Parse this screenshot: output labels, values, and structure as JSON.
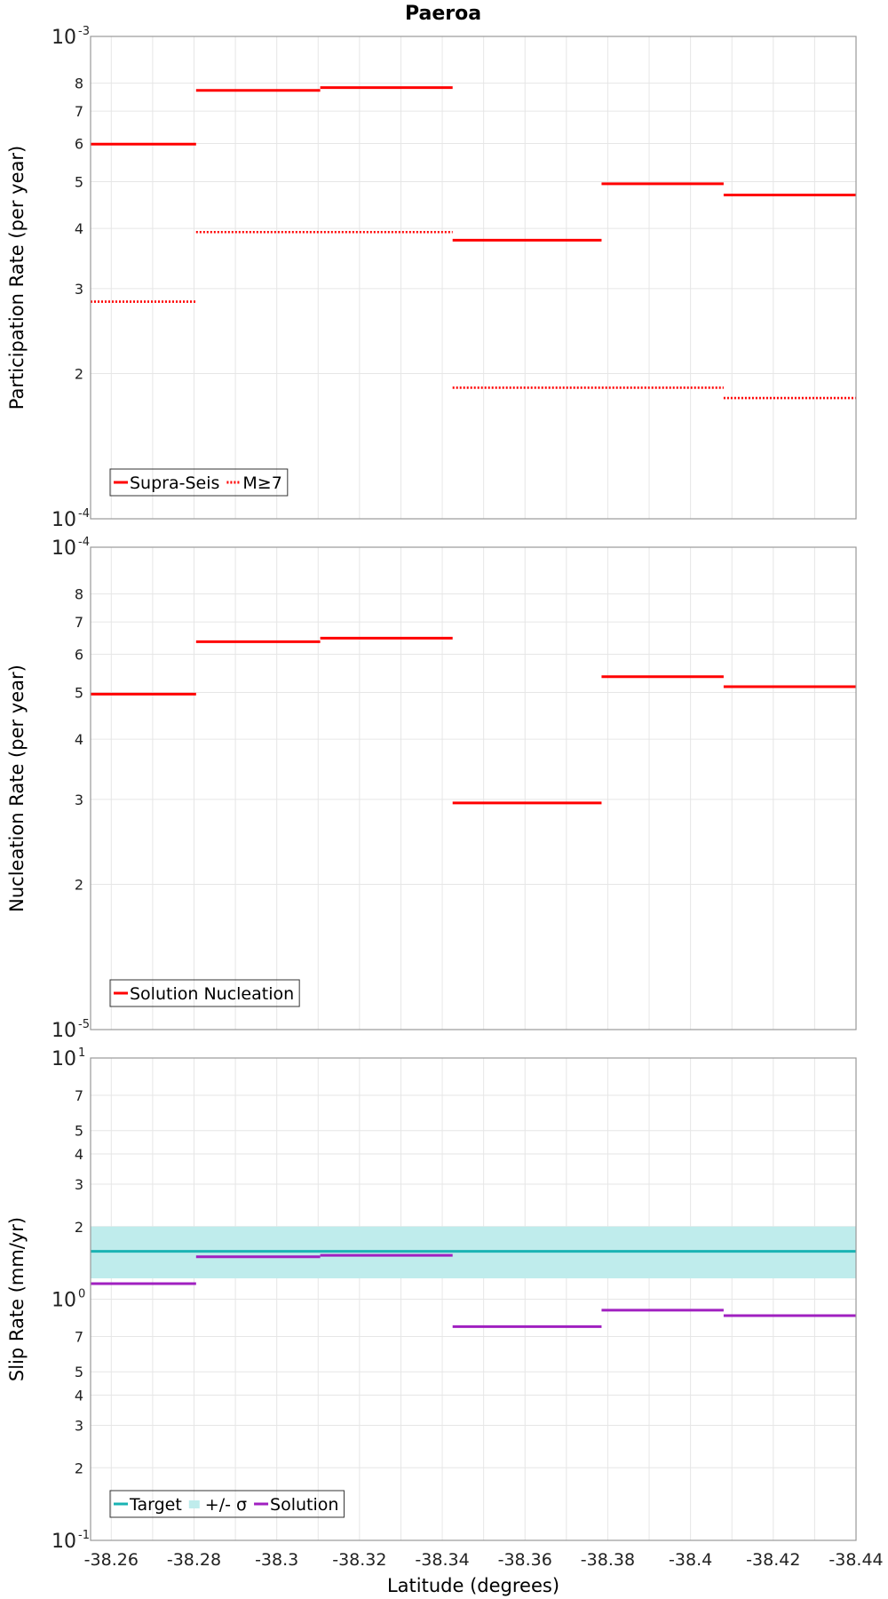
{
  "chart_data": {
    "figure_title": "Paeroa",
    "xlabel": "Latitude (degrees)",
    "xlim": [
      -38.255,
      -38.44
    ],
    "x_ticks": [
      "-38.26",
      "-38.28",
      "-38.3",
      "-38.32",
      "-38.34",
      "-38.36",
      "-38.38",
      "-38.4",
      "-38.42",
      "-38.44"
    ],
    "panels": [
      {
        "type": "line",
        "scale": "log",
        "ylabel": "Participation Rate (per year)",
        "ylim": [
          0.0001,
          0.001
        ],
        "y_ticks": [
          {
            "v": 0.0001,
            "base": "10",
            "exp": "-4",
            "major": true
          },
          {
            "v": 0.0002,
            "label": "2"
          },
          {
            "v": 0.0003,
            "label": "3"
          },
          {
            "v": 0.0004,
            "label": "4"
          },
          {
            "v": 0.0005,
            "label": "5"
          },
          {
            "v": 0.0006,
            "label": "6"
          },
          {
            "v": 0.0007,
            "label": "7"
          },
          {
            "v": 0.0008,
            "label": "8"
          },
          {
            "v": 0.001,
            "base": "10",
            "exp": "-3",
            "major": true
          }
        ],
        "grid": true,
        "legend_position": "bottom-left",
        "legend": [
          {
            "label": "Supra-Seis",
            "style": "solid",
            "color": "#ff0000"
          },
          {
            "label": "M≥7",
            "style": "dotted",
            "color": "#ff0000"
          }
        ],
        "series": [
          {
            "name": "Supra-Seis",
            "color": "#ff0000",
            "style": "solid",
            "segments": [
              {
                "x0": -38.255,
                "x1": -38.2805,
                "y": 0.000598
              },
              {
                "x0": -38.2805,
                "x1": -38.3105,
                "y": 0.000773
              },
              {
                "x0": -38.3105,
                "x1": -38.3425,
                "y": 0.000783
              },
              {
                "x0": -38.3425,
                "x1": -38.3785,
                "y": 0.000378
              },
              {
                "x0": -38.3785,
                "x1": -38.408,
                "y": 0.000495
              },
              {
                "x0": -38.408,
                "x1": -38.44,
                "y": 0.000469
              }
            ]
          },
          {
            "name": "M≥7",
            "color": "#ff0000",
            "style": "dotted",
            "segments": [
              {
                "x0": -38.255,
                "x1": -38.2805,
                "y": 0.000282
              },
              {
                "x0": -38.2805,
                "x1": -38.3425,
                "y": 0.000393
              },
              {
                "x0": -38.3425,
                "x1": -38.408,
                "y": 0.000187
              },
              {
                "x0": -38.408,
                "x1": -38.44,
                "y": 0.000178
              }
            ]
          }
        ]
      },
      {
        "type": "line",
        "scale": "log",
        "ylabel": "Nucleation Rate (per year)",
        "ylim": [
          1e-05,
          0.0001
        ],
        "y_ticks": [
          {
            "v": 1e-05,
            "base": "10",
            "exp": "-5",
            "major": true
          },
          {
            "v": 2e-05,
            "label": "2"
          },
          {
            "v": 3e-05,
            "label": "3"
          },
          {
            "v": 4e-05,
            "label": "4"
          },
          {
            "v": 5e-05,
            "label": "5"
          },
          {
            "v": 6e-05,
            "label": "6"
          },
          {
            "v": 7e-05,
            "label": "7"
          },
          {
            "v": 8e-05,
            "label": "8"
          },
          {
            "v": 0.0001,
            "base": "10",
            "exp": "-4",
            "major": true
          }
        ],
        "grid": true,
        "legend_position": "bottom-left",
        "legend": [
          {
            "label": "Solution Nucleation",
            "style": "solid",
            "color": "#ff0000"
          }
        ],
        "series": [
          {
            "name": "Solution Nucleation",
            "color": "#ff0000",
            "style": "solid",
            "segments": [
              {
                "x0": -38.255,
                "x1": -38.2805,
                "y": 4.96e-05
              },
              {
                "x0": -38.2805,
                "x1": -38.3105,
                "y": 6.37e-05
              },
              {
                "x0": -38.3105,
                "x1": -38.3425,
                "y": 6.48e-05
              },
              {
                "x0": -38.3425,
                "x1": -38.3785,
                "y": 2.95e-05
              },
              {
                "x0": -38.3785,
                "x1": -38.408,
                "y": 5.39e-05
              },
              {
                "x0": -38.408,
                "x1": -38.44,
                "y": 5.14e-05
              }
            ]
          }
        ]
      },
      {
        "type": "line",
        "scale": "log",
        "ylabel": "Slip Rate (mm/yr)",
        "ylim": [
          0.1,
          10
        ],
        "y_ticks": [
          {
            "v": 0.1,
            "base": "10",
            "exp": "-1",
            "major": true
          },
          {
            "v": 0.2,
            "label": "2"
          },
          {
            "v": 0.3,
            "label": "3"
          },
          {
            "v": 0.4,
            "label": "4"
          },
          {
            "v": 0.5,
            "label": "5"
          },
          {
            "v": 0.7,
            "label": "7"
          },
          {
            "v": 1,
            "base": "10",
            "exp": "0",
            "major": true
          },
          {
            "v": 2,
            "label": "2"
          },
          {
            "v": 3,
            "label": "3"
          },
          {
            "v": 4,
            "label": "4"
          },
          {
            "v": 5,
            "label": "5"
          },
          {
            "v": 7,
            "label": "7"
          },
          {
            "v": 10,
            "base": "10",
            "exp": "1",
            "major": true
          }
        ],
        "grid": true,
        "legend_position": "bottom-left",
        "legend": [
          {
            "label": "Target",
            "style": "solid",
            "color": "#1ab3b3"
          },
          {
            "label": "+/- σ",
            "style": "band",
            "color": "#bfecec"
          },
          {
            "label": "Solution",
            "style": "solid",
            "color": "#a020c0"
          }
        ],
        "bands": [
          {
            "name": "+/- σ",
            "color": "#bfecec",
            "x0": -38.255,
            "x1": -38.44,
            "y0": 1.22,
            "y1": 2.0
          }
        ],
        "series": [
          {
            "name": "Target",
            "color": "#1ab3b3",
            "style": "solid",
            "segments": [
              {
                "x0": -38.255,
                "x1": -38.44,
                "y": 1.58
              }
            ]
          },
          {
            "name": "Solution",
            "color": "#a020c0",
            "style": "solid",
            "segments": [
              {
                "x0": -38.255,
                "x1": -38.2805,
                "y": 1.16
              },
              {
                "x0": -38.2805,
                "x1": -38.3105,
                "y": 1.5
              },
              {
                "x0": -38.3105,
                "x1": -38.3425,
                "y": 1.52
              },
              {
                "x0": -38.3425,
                "x1": -38.3785,
                "y": 0.77
              },
              {
                "x0": -38.3785,
                "x1": -38.408,
                "y": 0.9
              },
              {
                "x0": -38.408,
                "x1": -38.44,
                "y": 0.855
              }
            ]
          }
        ]
      }
    ]
  }
}
